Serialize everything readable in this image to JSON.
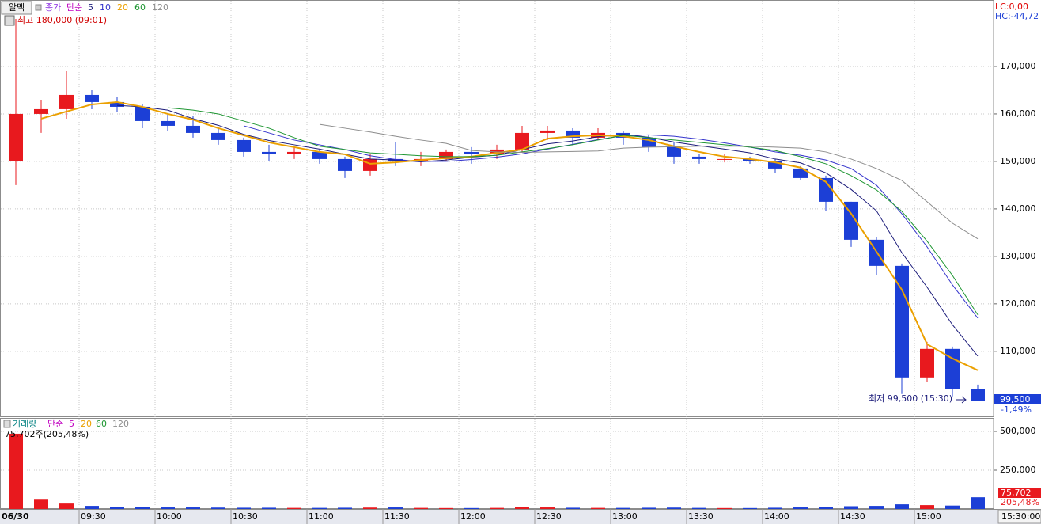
{
  "chart_data": [
    {
      "type": "candlestick",
      "date": "06/30",
      "categories": [
        "09:00",
        "09:10",
        "09:20",
        "09:30",
        "09:40",
        "09:50",
        "10:00",
        "10:10",
        "10:20",
        "10:30",
        "10:40",
        "10:50",
        "11:00",
        "11:10",
        "11:20",
        "11:30",
        "11:40",
        "11:50",
        "12:00",
        "12:10",
        "12:20",
        "12:30",
        "12:40",
        "12:50",
        "13:00",
        "13:10",
        "13:20",
        "13:30",
        "13:40",
        "13:50",
        "14:00",
        "14:10",
        "14:20",
        "14:30",
        "14:40",
        "14:50",
        "15:00",
        "15:10",
        "15:20"
      ],
      "open": [
        150000,
        160000,
        161000,
        164000,
        162500,
        161500,
        158500,
        157500,
        156000,
        154500,
        152000,
        151500,
        152000,
        150500,
        148000,
        150500,
        150000,
        150500,
        152000,
        151500,
        152500,
        156000,
        156500,
        155000,
        156000,
        155000,
        153000,
        151000,
        150500,
        150500,
        150000,
        148500,
        146500,
        141500,
        133500,
        128000,
        104500,
        110500,
        102000
      ],
      "high": [
        180000,
        163000,
        169000,
        165000,
        163500,
        162000,
        160000,
        159500,
        157000,
        155000,
        153500,
        153000,
        152500,
        151000,
        151500,
        154000,
        152000,
        152500,
        153000,
        153500,
        157500,
        157500,
        157000,
        157000,
        156500,
        155500,
        154000,
        151500,
        151500,
        151000,
        150500,
        149000,
        147000,
        141500,
        134000,
        128500,
        112000,
        111000,
        103000
      ],
      "low": [
        145000,
        156000,
        159000,
        161000,
        160500,
        157000,
        156500,
        155000,
        153500,
        151000,
        150000,
        150500,
        149500,
        146500,
        147000,
        149000,
        149000,
        150000,
        149500,
        150500,
        152000,
        154500,
        153500,
        154500,
        153500,
        152000,
        149500,
        149500,
        149800,
        149500,
        147500,
        146000,
        139500,
        132000,
        126000,
        101000,
        103500,
        100500,
        99500
      ],
      "close": [
        160000,
        161000,
        164000,
        162500,
        161500,
        158500,
        157500,
        156000,
        154500,
        152000,
        151500,
        152000,
        150500,
        148000,
        150500,
        150000,
        150500,
        152000,
        151500,
        152500,
        156000,
        156500,
        155000,
        156000,
        155000,
        153000,
        151000,
        150500,
        150500,
        150000,
        148500,
        146500,
        141500,
        133500,
        128000,
        104500,
        110500,
        102000,
        99500
      ],
      "up_color": "#e8191e",
      "down_color": "#1c3fd6",
      "ylim": [
        96300,
        183500
      ],
      "yticks": [
        {
          "value": 110000,
          "label": "110,000"
        },
        {
          "value": 120000,
          "label": "120,000"
        },
        {
          "value": 130000,
          "label": "130,000"
        },
        {
          "value": 140000,
          "label": "140,000"
        },
        {
          "value": 150000,
          "label": "150,000"
        },
        {
          "value": 160000,
          "label": "160,000"
        },
        {
          "value": 170000,
          "label": "170,000"
        }
      ],
      "xticks": [
        "09:30",
        "10:00",
        "10:30",
        "11:00",
        "11:30",
        "12:00",
        "12:30",
        "13:00",
        "13:30",
        "14:00",
        "14:30",
        "15:00"
      ],
      "grid": true,
      "series": [
        {
          "name": "5",
          "color": "#1b1b7a",
          "values": [
            null,
            null,
            null,
            null,
            161800,
            161500,
            160800,
            159000,
            157600,
            155700,
            154400,
            153500,
            152600,
            151500,
            150500,
            150300,
            149900,
            150300,
            150900,
            151300,
            152500,
            153700,
            154300,
            155200,
            155700,
            155100,
            154100,
            153300,
            152600,
            151800,
            150500,
            149700,
            147600,
            144100,
            139600,
            130800,
            123500,
            115600,
            109000
          ]
        },
        {
          "name": "10",
          "color": "#3333cc",
          "values": [
            null,
            null,
            null,
            null,
            null,
            null,
            null,
            null,
            null,
            157500,
            156000,
            154500,
            153500,
            152500,
            151200,
            150400,
            150000,
            150000,
            150400,
            150900,
            151600,
            152600,
            153600,
            154600,
            155400,
            155600,
            155300,
            154700,
            153900,
            153000,
            152000,
            151300,
            150300,
            148500,
            145000,
            139000,
            132000,
            124000,
            117000
          ]
        },
        {
          "name": "20",
          "color": "#eba000",
          "values": [
            null,
            159000,
            160500,
            162000,
            162500,
            161500,
            160000,
            158800,
            157000,
            155500,
            154000,
            153000,
            152000,
            151500,
            149500,
            149800,
            150300,
            150700,
            151000,
            151800,
            152500,
            154800,
            155300,
            155500,
            155300,
            154500,
            153200,
            152000,
            151000,
            150500,
            149800,
            148700,
            145700,
            139000,
            131000,
            123000,
            111500,
            108500,
            106000
          ]
        },
        {
          "name": "60",
          "color": "#1e9632",
          "values": [
            null,
            null,
            null,
            null,
            null,
            null,
            161300,
            160800,
            160000,
            158500,
            157000,
            155000,
            153200,
            152500,
            151800,
            151500,
            151200,
            151000,
            151000,
            151300,
            152000,
            152700,
            153500,
            154500,
            155500,
            155000,
            154500,
            154000,
            153500,
            153000,
            152300,
            151000,
            149500,
            147000,
            144000,
            139500,
            133200,
            126000,
            117700
          ]
        },
        {
          "name": "120",
          "color": "#8c8c8c",
          "values": [
            null,
            null,
            null,
            null,
            null,
            null,
            null,
            null,
            null,
            null,
            null,
            null,
            157800,
            157000,
            156200,
            155300,
            154500,
            153800,
            152300,
            152000,
            151900,
            152000,
            152100,
            152200,
            152800,
            153000,
            153100,
            153200,
            153200,
            153200,
            153000,
            152800,
            152000,
            150500,
            148500,
            146000,
            141500,
            137000,
            133700
          ]
        }
      ]
    },
    {
      "type": "bar",
      "values": [
        485000,
        60000,
        35000,
        20000,
        15000,
        12000,
        10000,
        10000,
        9000,
        8000,
        8000,
        7000,
        7000,
        8000,
        9000,
        10000,
        7000,
        6000,
        6000,
        7000,
        12000,
        10000,
        8000,
        7000,
        7000,
        8000,
        9000,
        7000,
        6000,
        6000,
        8000,
        10000,
        14000,
        18000,
        20000,
        30000,
        25000,
        22000,
        75702
      ],
      "ylim": [
        0,
        586700
      ],
      "yticks": [
        {
          "value": 250000,
          "label": "250,000"
        },
        {
          "value": 500000,
          "label": "500,000"
        }
      ]
    }
  ],
  "ui": {
    "stock": "알멕",
    "price_legend": [
      "종가",
      "단순"
    ],
    "high_note": "최고 180,000 (09:01)",
    "lc": "LC:0,00",
    "hc": "HC:-44,72",
    "low_note": "최저 99,500 (15:30)",
    "price_tag": "99,500",
    "change": "-1,49%",
    "volume_legend": [
      "거래량",
      "단순",
      "5",
      "20",
      "60",
      "120"
    ],
    "volume_note": "75,702주(205,48%)",
    "volume_tag": "75,702",
    "volume_ratio": "205,48%",
    "cursor_time": "15:30:00"
  }
}
